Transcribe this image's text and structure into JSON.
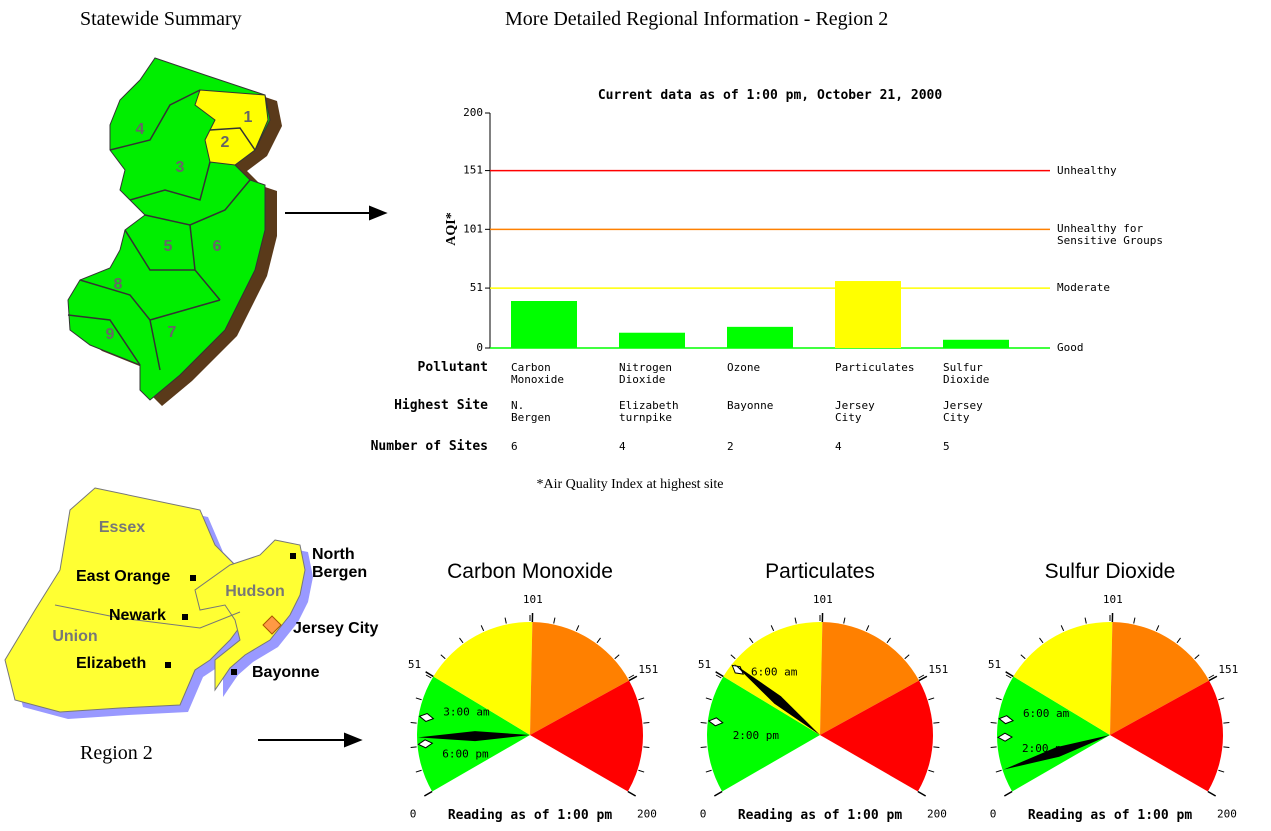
{
  "header": {
    "left_title": "Statewide Summary",
    "right_title": "More Detailed Regional Information - Region 2"
  },
  "state_map": {
    "regions": [
      "1",
      "2",
      "3",
      "4",
      "5",
      "6",
      "7",
      "8",
      "9"
    ]
  },
  "region_map": {
    "title": "Region 2",
    "counties": [
      "Essex",
      "Hudson",
      "Union"
    ],
    "cities": [
      "North Bergen",
      "East Orange",
      "Newark",
      "Jersey City",
      "Elizabeth",
      "Bayonne"
    ]
  },
  "chart_data": [
    {
      "type": "bar",
      "title": "Current data as of 1:00 pm, October 21, 2000",
      "y_label": "AQI*",
      "categories": [
        "Carbon Monoxide",
        "Nitrogen Dioxide",
        "Ozone",
        "Particulates",
        "Sulfur Dioxide"
      ],
      "values": [
        40,
        13,
        18,
        57,
        7
      ],
      "colors": [
        "#00ff00",
        "#00ff00",
        "#00ff00",
        "#ffff00",
        "#00ff00"
      ],
      "ylim": [
        0,
        200
      ],
      "yticks": [
        0,
        51,
        101,
        151,
        200
      ],
      "reference_lines": [
        {
          "value": 151,
          "label": "Unhealthy",
          "color": "#ff0000"
        },
        {
          "value": 101,
          "label": "Unhealthy for Sensitive Groups",
          "color": "#ff8000"
        },
        {
          "value": 51,
          "label": "Moderate",
          "color": "#ffff00"
        },
        {
          "value": 0,
          "label": "Good",
          "color": "#00ff00"
        }
      ],
      "table": {
        "category_header": "Pollutant",
        "rows": [
          {
            "header": "Highest Site",
            "cells": [
              "N. Bergen",
              "Elizabeth turnpike",
              "Bayonne",
              "Jersey City",
              "Jersey City"
            ]
          },
          {
            "header": "Number of Sites",
            "cells": [
              6,
              4,
              2,
              4,
              5
            ]
          }
        ]
      },
      "footnote": "*Air Quality Index at highest site"
    },
    {
      "type": "gauge",
      "title": "Carbon Monoxide",
      "value": 24,
      "range": [
        0,
        200
      ],
      "ticks": [
        0,
        51,
        101,
        151,
        200
      ],
      "bands": [
        {
          "from": 0,
          "to": 51,
          "color": "#00ff00"
        },
        {
          "from": 51,
          "to": 101,
          "color": "#ffff00"
        },
        {
          "from": 101,
          "to": 151,
          "color": "#ff8000"
        },
        {
          "from": 151,
          "to": 200,
          "color": "#ff0000"
        }
      ],
      "markers": [
        {
          "label": "3:00 am",
          "value": 33
        },
        {
          "label": "6:00 pm",
          "value": 21
        }
      ],
      "caption": "Reading as of 1:00 pm"
    },
    {
      "type": "gauge",
      "title": "Particulates",
      "value": 58,
      "range": [
        0,
        200
      ],
      "ticks": [
        0,
        51,
        101,
        151,
        200
      ],
      "bands": [
        {
          "from": 0,
          "to": 51,
          "color": "#00ff00"
        },
        {
          "from": 51,
          "to": 101,
          "color": "#ffff00"
        },
        {
          "from": 101,
          "to": 151,
          "color": "#ff8000"
        },
        {
          "from": 151,
          "to": 200,
          "color": "#ff0000"
        }
      ],
      "markers": [
        {
          "label": "6:00 am",
          "value": 57
        },
        {
          "label": "2:00 pm",
          "value": 31
        }
      ],
      "caption": "Reading as of 1:00 pm"
    },
    {
      "type": "gauge",
      "title": "Sulfur Dioxide",
      "value": 10,
      "range": [
        0,
        200
      ],
      "ticks": [
        0,
        51,
        101,
        151,
        200
      ],
      "bands": [
        {
          "from": 0,
          "to": 51,
          "color": "#00ff00"
        },
        {
          "from": 51,
          "to": 101,
          "color": "#ffff00"
        },
        {
          "from": 101,
          "to": 151,
          "color": "#ff8000"
        },
        {
          "from": 151,
          "to": 200,
          "color": "#ff0000"
        }
      ],
      "markers": [
        {
          "label": "6:00 am",
          "value": 32
        },
        {
          "label": "2:00 pm",
          "value": 24
        }
      ],
      "caption": "Reading as of 1:00 pm"
    }
  ]
}
